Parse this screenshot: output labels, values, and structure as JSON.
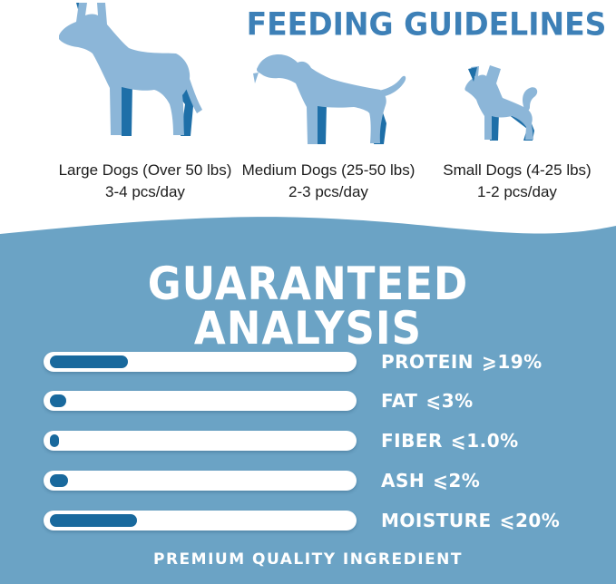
{
  "header": {
    "title": "FEEDING GUIDELINES"
  },
  "feeding": {
    "items": [
      {
        "name": "large-dog",
        "label": "Large Dogs (Over 50 lbs)",
        "amount": "3-4 pcs/day"
      },
      {
        "name": "medium-dog",
        "label": "Medium Dogs (25-50 lbs)",
        "amount": "2-3 pcs/day"
      },
      {
        "name": "small-dog",
        "label": "Small Dogs (4-25 lbs)",
        "amount": "1-2 pcs/day"
      }
    ]
  },
  "analysis": {
    "title_line1": "GUARANTEED",
    "title_line2": "ANALYSIS",
    "rows": [
      {
        "label": "PROTEIN",
        "comparator": "⩾",
        "value": "19%",
        "fill_pct": 26
      },
      {
        "label": "FAT",
        "comparator": "⩽",
        "value": "3%",
        "fill_pct": 5.5
      },
      {
        "label": "FIBER",
        "comparator": "⩽",
        "value": "1.0%",
        "fill_pct": 3
      },
      {
        "label": "ASH",
        "comparator": "⩽",
        "value": "2%",
        "fill_pct": 6
      },
      {
        "label": "MOISTURE",
        "comparator": "⩽",
        "value": "20%",
        "fill_pct": 29
      }
    ],
    "footer": "PREMIUM QUALITY INGREDIENT"
  },
  "chart_data": {
    "type": "bar",
    "categories": [
      "PROTEIN",
      "FAT",
      "FIBER",
      "ASH",
      "MOISTURE"
    ],
    "values": [
      19,
      3,
      1.0,
      2,
      20
    ],
    "comparators": [
      "≥",
      "≤",
      "≤",
      "≤",
      "≤"
    ],
    "title": "GUARANTEED ANALYSIS",
    "legend": "none",
    "orientation": "horizontal"
  },
  "colors": {
    "title-blue": "#3d80b7",
    "dog-light": "#8cb6d8",
    "dog-dark": "#1e6fa8",
    "section-bg": "#6ba3c5",
    "bar-fill": "#19699d",
    "caption": "#1c1c1c"
  }
}
